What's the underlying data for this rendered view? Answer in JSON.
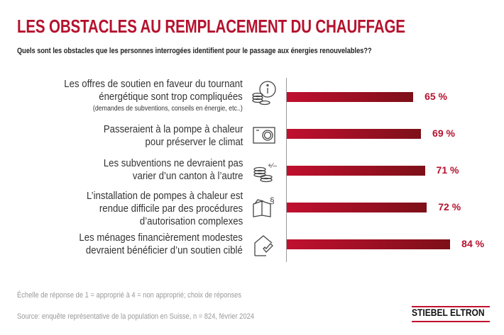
{
  "header": {
    "title": "LES OBSTACLES AU REMPLACEMENT DU CHAUFFAGE",
    "subtitle": "Quels sont les obstacles que les personnes interrogées identifient pour le passage aux énergies renouvelables??"
  },
  "chart_data": {
    "type": "bar",
    "orientation": "horizontal",
    "categories": [
      "Les offres de soutien en faveur du tournant énergétique sont trop compliquées",
      "Passeraient à la pompe à chaleur pour préserver le climat",
      "Les subventions ne devraient pas varier d’un canton à l’autre",
      "L’installation de pompes à chaleur est rendue difficile par des procédures d’autorisation complexes",
      "Les ménages financièrement modestes devraient bénéficier d’un soutien ciblé"
    ],
    "values": [
      65,
      69,
      71,
      72,
      84
    ],
    "unit": "%",
    "xlim": [
      0,
      100
    ],
    "grid": false,
    "bar_color_start": "#c0102f",
    "bar_color_end": "#7d1018",
    "value_labels": [
      "65 %",
      "69 %",
      "71 %",
      "72 %",
      "84 %"
    ]
  },
  "items": [
    {
      "lines": [
        "Les offres de soutien en faveur du tournant",
        "énergétique sont trop compliquées"
      ],
      "note": "(demandes de subventions, conseils en énergie, etc..)",
      "icon": "info-coins-icon"
    },
    {
      "lines": [
        "Passeraient à la pompe à chaleur",
        "pour préserver le climat"
      ],
      "icon": "heat-pump-icon"
    },
    {
      "lines": [
        "Les subventions ne devraient pas",
        "varier d’un canton à l’autre"
      ],
      "icon": "coins-plus-minus-icon"
    },
    {
      "lines": [
        "L’installation de pompes à chaleur est",
        "rendue difficile par des procédures",
        "d’autorisation complexes"
      ],
      "icon": "law-book-icon"
    },
    {
      "lines": [
        "Les ménages financièrement modestes",
        "devraient bénéficier d’un soutien ciblé"
      ],
      "icon": "house-check-icon"
    }
  ],
  "footer": {
    "scale": "Échelle de réponse de 1 = approprié à 4 = non approprié; choix de réponses",
    "source": "Source: enquête représentative de la population en Suisse, n = 824, février 2024",
    "logo": "STIEBEL ELTRON"
  },
  "colors": {
    "accent": "#b5122e"
  }
}
